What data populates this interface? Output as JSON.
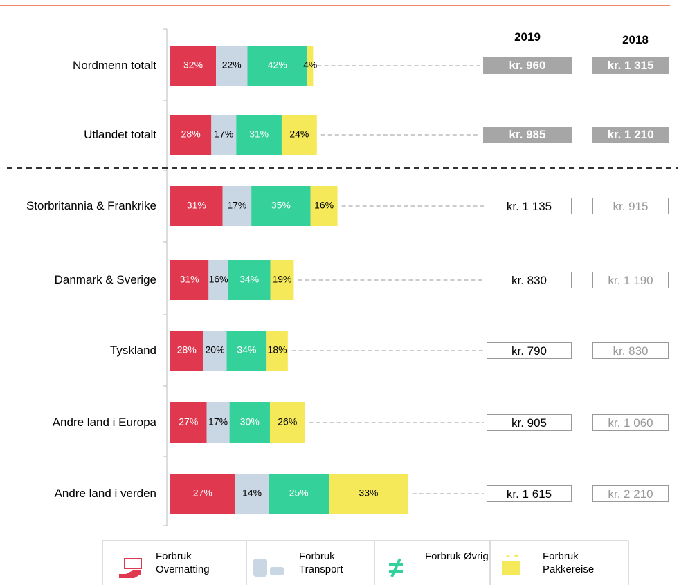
{
  "chart_data": {
    "type": "stacked-bar",
    "categories": [
      "Nordmenn totalt",
      "Utlandet totalt",
      "Storbritannia & Frankrike",
      "Danmark & Sverige",
      "Tyskland",
      "Andre land i Europa",
      "Andre land i verden"
    ],
    "series": [
      {
        "name": "Forbruk Overnatting",
        "color": "#e0394f",
        "values": [
          32,
          28,
          31,
          31,
          28,
          27,
          27
        ],
        "value_labels": [
          "32%",
          "28%",
          "31%",
          "31%",
          "28%",
          "27%",
          "27%"
        ]
      },
      {
        "name": "Forbruk Transport",
        "color": "#c9d6e3",
        "values": [
          22,
          17,
          17,
          16,
          20,
          17,
          14
        ],
        "value_labels": [
          "22%",
          "17%",
          "17%",
          "16%",
          "20%",
          "17%",
          "14%"
        ]
      },
      {
        "name": "Forbruk Øvrig",
        "color": "#35d19a",
        "values": [
          42,
          31,
          35,
          34,
          34,
          30,
          25
        ],
        "value_labels": [
          "42%",
          "31%",
          "35%",
          "34%",
          "34%",
          "30%",
          "25%"
        ]
      },
      {
        "name": "Forbruk Pakkereise",
        "color": "#f5e95a",
        "values": [
          4,
          24,
          16,
          19,
          18,
          26,
          33
        ],
        "value_labels": [
          "4%",
          "24%",
          "16%",
          "19%",
          "18%",
          "26%",
          "33%"
        ]
      }
    ],
    "totals": [
      {
        "name": "2019",
        "values": [
          960,
          985,
          1135,
          830,
          790,
          905,
          1615
        ],
        "value_labels": [
          "kr. 960",
          "kr. 985",
          "kr. 1 135",
          "kr. 830",
          "kr. 790",
          "kr. 905",
          "kr. 1 615"
        ]
      },
      {
        "name": "2018",
        "values": [
          1315,
          1210,
          915,
          1190,
          830,
          1060,
          2210
        ],
        "value_labels": [
          "kr. 1 315",
          "kr. 1 210",
          "kr. 915",
          "kr. 1 190",
          "kr. 830",
          "kr. 1 060",
          "kr. 2 210"
        ]
      }
    ]
  }
}
